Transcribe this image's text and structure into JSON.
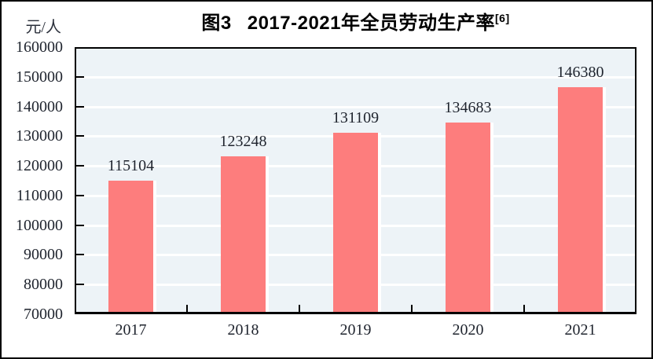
{
  "figure": {
    "title_prefix": "图3",
    "title_main": "2017-2021年全员劳动生产率",
    "title_superscript": "[6]",
    "unit_label": "元/人"
  },
  "chart_data": {
    "type": "bar",
    "title": "图3 2017-2021年全员劳动生产率[6]",
    "xlabel": "",
    "ylabel": "元/人",
    "categories": [
      "2017",
      "2018",
      "2019",
      "2020",
      "2021"
    ],
    "values": [
      115104,
      123248,
      131109,
      134683,
      146380
    ],
    "data_labels": [
      "115104",
      "123248",
      "131109",
      "134683",
      "146380"
    ],
    "ylim": [
      70000,
      160000
    ],
    "ytick_step": 10000,
    "ytick_labels": [
      "70000",
      "80000",
      "90000",
      "100000",
      "110000",
      "120000",
      "130000",
      "140000",
      "150000",
      "160000"
    ],
    "grid": true,
    "legend": "none",
    "colors": {
      "bar": "#fd7d7d",
      "bar_shadow": "#ffffff",
      "plot_background": "#edf3f7",
      "gridline": "#ffffff",
      "axis": "#000000",
      "text": "#1f242e"
    }
  }
}
